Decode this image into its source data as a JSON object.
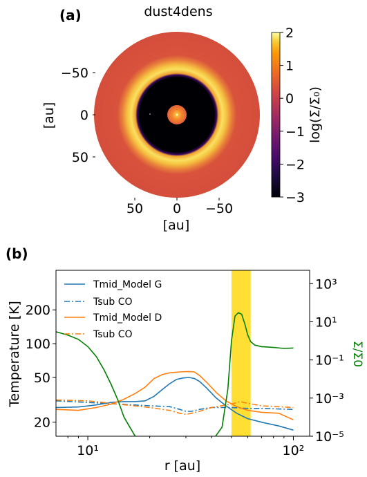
{
  "panels": {
    "a_label": "(a)",
    "b_label": "(b)"
  },
  "chart_data": [
    {
      "type": "heatmap",
      "title": "dust4dens",
      "xlabel": "[au]",
      "ylabel": "[au]",
      "xticks": [
        50,
        0,
        -50
      ],
      "xtick_labels": [
        "50",
        "0",
        "−50"
      ],
      "yticks": [
        -50,
        0,
        50
      ],
      "ytick_labels": [
        "−50",
        "0",
        "50"
      ],
      "xlim": [
        100,
        -100
      ],
      "ylim": [
        -100,
        100
      ],
      "colorbar": {
        "label": "log(Σ/Σ₀)",
        "range": [
          -3,
          2
        ],
        "ticks": [
          2,
          1,
          0,
          -1,
          -2,
          -3
        ],
        "tick_labels": [
          "2",
          "1",
          "0",
          "−1",
          "−2",
          "−3"
        ],
        "colormap": "inferno"
      },
      "structure": [
        {
          "r_inner": 0,
          "r_outer": 5,
          "log_density": 0.6,
          "color": "#f5762a"
        },
        {
          "r_inner": 5,
          "r_outer": 48,
          "log_density": -3,
          "color": "#000004"
        },
        {
          "r_inner": 48,
          "r_outer": 63,
          "log_density": 1.5,
          "color": "#f8d040"
        },
        {
          "r_inner": 63,
          "r_outer": 100,
          "log_density": 0.5,
          "color": "#d8503c"
        }
      ]
    },
    {
      "type": "line",
      "xlabel": "r [au]",
      "ylabel": "Temperature [K]",
      "y2label": "Σ/Σ0",
      "xscale": "log",
      "yscale": "log",
      "y2scale": "log",
      "xlim": [
        7,
        120
      ],
      "ylim": [
        15,
        450
      ],
      "y2lim": [
        1e-05,
        5000
      ],
      "xticks": [
        10,
        100
      ],
      "xtick_labels": [
        "10¹",
        "10²"
      ],
      "yticks": [
        20,
        50,
        100,
        200
      ],
      "ytick_labels": [
        "20",
        "50",
        "100",
        "200"
      ],
      "y2ticks": [
        1e-05,
        0.001,
        0.1,
        10,
        1000
      ],
      "y2tick_labels": [
        "10⁻⁵",
        "10⁻³",
        "10⁻¹",
        "10¹",
        "10³"
      ],
      "legend_position": "top-left",
      "highlight_band": {
        "x": [
          50,
          62
        ],
        "color": "#ffd700"
      },
      "series": [
        {
          "name": "Tmid_Model G",
          "color": "#1f77b4",
          "style": "solid",
          "axis": "left",
          "x": [
            7,
            9,
            11,
            13,
            15,
            17,
            19,
            21,
            23,
            25,
            27,
            29,
            31,
            33,
            35,
            38,
            42,
            47,
            53,
            60,
            70,
            85,
            100
          ],
          "y": [
            27,
            27.3,
            28.5,
            30,
            30.5,
            30.5,
            31,
            34,
            39,
            44,
            48,
            49.5,
            50,
            49,
            46,
            40,
            33,
            28,
            24,
            21.5,
            20,
            18.5,
            17
          ]
        },
        {
          "name": "Tsub CO",
          "color": "#1f77b4",
          "style": "dashdot",
          "axis": "left",
          "x": [
            7,
            10,
            14,
            20,
            25,
            28,
            30,
            32,
            35,
            40,
            50,
            60,
            70,
            100
          ],
          "y": [
            31,
            30,
            29,
            28,
            27.5,
            26,
            25,
            25,
            26,
            27,
            27,
            26.5,
            26.5,
            26
          ]
        },
        {
          "name": "Tmid_Model D",
          "color": "#ff7f0e",
          "style": "solid",
          "axis": "left",
          "x": [
            7,
            9,
            11,
            13,
            15,
            17,
            19,
            21,
            23,
            25,
            28,
            31,
            33,
            35,
            38,
            42,
            47,
            53,
            60,
            70,
            85,
            100
          ],
          "y": [
            26,
            25.5,
            27,
            29,
            32,
            36,
            41,
            49,
            53,
            55,
            56,
            56.5,
            56,
            52,
            45,
            37,
            31,
            27.5,
            25.5,
            24.5,
            24,
            21
          ]
        },
        {
          "name": "Tsub CO",
          "color": "#ff7f0e",
          "style": "dashdot",
          "axis": "left",
          "x": [
            7,
            10,
            14,
            20,
            25,
            28,
            30,
            32,
            35,
            40,
            50,
            55,
            60,
            70,
            100
          ],
          "y": [
            31.5,
            31,
            29,
            27,
            25.5,
            24,
            23.5,
            24,
            25,
            27,
            29,
            30.5,
            29.5,
            28,
            27
          ]
        },
        {
          "name": "",
          "color": "#008000",
          "style": "solid",
          "axis": "right",
          "x": [
            7,
            8,
            9,
            10,
            11,
            12,
            13,
            14,
            15,
            16,
            17,
            17.5,
            40,
            45,
            48,
            50,
            52,
            54,
            56,
            58,
            60,
            62,
            65,
            70,
            80,
            90,
            100
          ],
          "y": [
            3,
            2,
            1.2,
            0.5,
            0.15,
            0.03,
            0.005,
            0.0008,
            0.0001,
            3e-05,
            1e-05,
            5e-06,
            5e-06,
            3e-05,
            0.003,
            1,
            20,
            30,
            25,
            8,
            2,
            0.9,
            0.6,
            0.5,
            0.45,
            0.4,
            0.42
          ]
        }
      ]
    }
  ]
}
